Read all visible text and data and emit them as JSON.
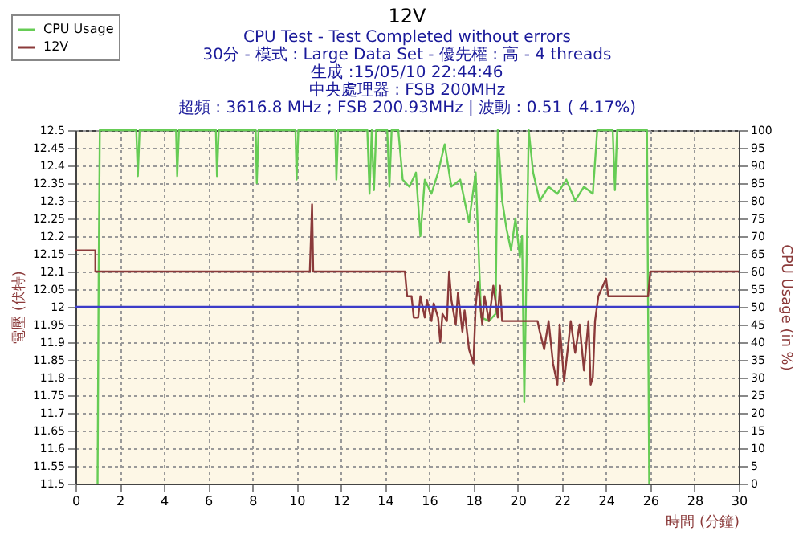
{
  "chart_data": {
    "type": "line",
    "title": "12V",
    "subtitle": "CPU Test - Test Completed without errors",
    "annotations": [
      "30分 - 模式 : Large Data Set - 優先權 : 高 - 4 threads",
      "生成 :15/05/10 22:44:46",
      "中央處理器 : FSB 200MHz",
      "超頻 : 3616.8 MHz ; FSB 200.93MHz | 波動 : 0.51 ( 4.17%)"
    ],
    "xlabel": "時間 (分鐘)",
    "ylabel": "電壓 (伏特)",
    "y2label": "CPU Usage (in %)",
    "xlim": [
      0,
      30
    ],
    "xticks": [
      0,
      2,
      4,
      6,
      8,
      10,
      12,
      14,
      16,
      18,
      20,
      22,
      24,
      26,
      28,
      30
    ],
    "ylim": [
      11.5,
      12.5
    ],
    "yticks": [
      11.5,
      11.55,
      11.6,
      11.65,
      11.7,
      11.75,
      11.8,
      11.85,
      11.9,
      11.95,
      12,
      12.05,
      12.1,
      12.15,
      12.2,
      12.25,
      12.3,
      12.35,
      12.4,
      12.45,
      12.5
    ],
    "y2lim": [
      0,
      100
    ],
    "y2ticks": [
      0,
      5,
      10,
      15,
      20,
      25,
      30,
      35,
      40,
      45,
      50,
      55,
      60,
      65,
      70,
      75,
      80,
      85,
      90,
      95,
      100
    ],
    "grid": true,
    "legend": "top left",
    "ref_lines": [
      {
        "axis": "y",
        "value": 12,
        "color": "#3c3cc8"
      }
    ],
    "series": [
      {
        "name": "CPU Usage",
        "color": "#66cc55",
        "axis": "y2",
        "x": [
          1.0,
          1.05,
          1.1,
          2.75,
          2.82,
          2.9,
          4.55,
          4.6,
          4.68,
          6.35,
          6.4,
          6.48,
          8.15,
          8.2,
          8.28,
          9.95,
          10.0,
          10.08,
          11.75,
          11.8,
          11.88,
          13.2,
          13.3,
          13.4,
          13.5,
          13.6,
          14.1,
          14.2,
          14.3,
          14.6,
          14.8,
          15.1,
          15.4,
          15.6,
          15.8,
          16.1,
          16.4,
          16.7,
          17.0,
          17.4,
          17.8,
          18.1,
          18.35,
          18.7,
          19.0,
          19.1,
          19.3,
          19.5,
          19.7,
          19.9,
          20.1,
          20.2,
          20.3,
          20.5,
          20.7,
          21.0,
          21.4,
          21.8,
          22.2,
          22.6,
          23.0,
          23.4,
          23.6,
          24.3,
          24.4,
          24.5,
          25.85,
          25.9,
          25.95
        ],
        "values": [
          0,
          60,
          100,
          100,
          87,
          100,
          100,
          87,
          100,
          100,
          87,
          100,
          100,
          85,
          100,
          100,
          86,
          100,
          100,
          86,
          100,
          100,
          82,
          100,
          83,
          100,
          100,
          84,
          100,
          100,
          86,
          84,
          88,
          70,
          86,
          82,
          88,
          96,
          84,
          86,
          74,
          88,
          47,
          46,
          48,
          100,
          80,
          72,
          66,
          75,
          64,
          70,
          23,
          100,
          88,
          80,
          84,
          82,
          86,
          80,
          84,
          82,
          100,
          100,
          83,
          100,
          100,
          50,
          0
        ]
      },
      {
        "name": "12V",
        "color": "#8b3a3a",
        "x": [
          0,
          0.9,
          0.9,
          10.6,
          10.7,
          10.75,
          10.8,
          14.9,
          15.0,
          15.2,
          15.3,
          15.5,
          15.6,
          15.8,
          15.9,
          16.1,
          16.2,
          16.4,
          16.5,
          16.6,
          16.8,
          16.9,
          17.0,
          17.2,
          17.3,
          17.5,
          17.6,
          17.8,
          18.0,
          18.1,
          18.2,
          18.4,
          18.5,
          18.7,
          18.9,
          19.1,
          19.2,
          19.3,
          20.9,
          21.0,
          21.2,
          21.4,
          21.6,
          21.8,
          21.9,
          22.1,
          22.3,
          22.4,
          22.6,
          22.8,
          23.0,
          23.2,
          23.3,
          23.4,
          23.5,
          23.65,
          24.0,
          24.1,
          25.9,
          26.0,
          30
        ],
        "values": [
          12.16,
          12.16,
          12.1,
          12.1,
          12.29,
          12.1,
          12.1,
          12.1,
          12.03,
          12.03,
          11.97,
          11.97,
          12.03,
          11.97,
          12.02,
          11.96,
          12.01,
          11.97,
          11.9,
          11.98,
          11.96,
          12.1,
          12.02,
          11.95,
          12.04,
          11.93,
          11.99,
          11.88,
          11.84,
          12.0,
          12.07,
          11.95,
          12.03,
          11.96,
          12.06,
          11.97,
          12.06,
          11.96,
          11.96,
          11.93,
          11.88,
          11.96,
          11.84,
          11.78,
          11.95,
          11.79,
          11.9,
          11.96,
          11.87,
          11.95,
          11.82,
          11.96,
          11.78,
          11.8,
          11.96,
          12.03,
          12.08,
          12.03,
          12.03,
          12.1,
          12.1
        ]
      }
    ]
  }
}
